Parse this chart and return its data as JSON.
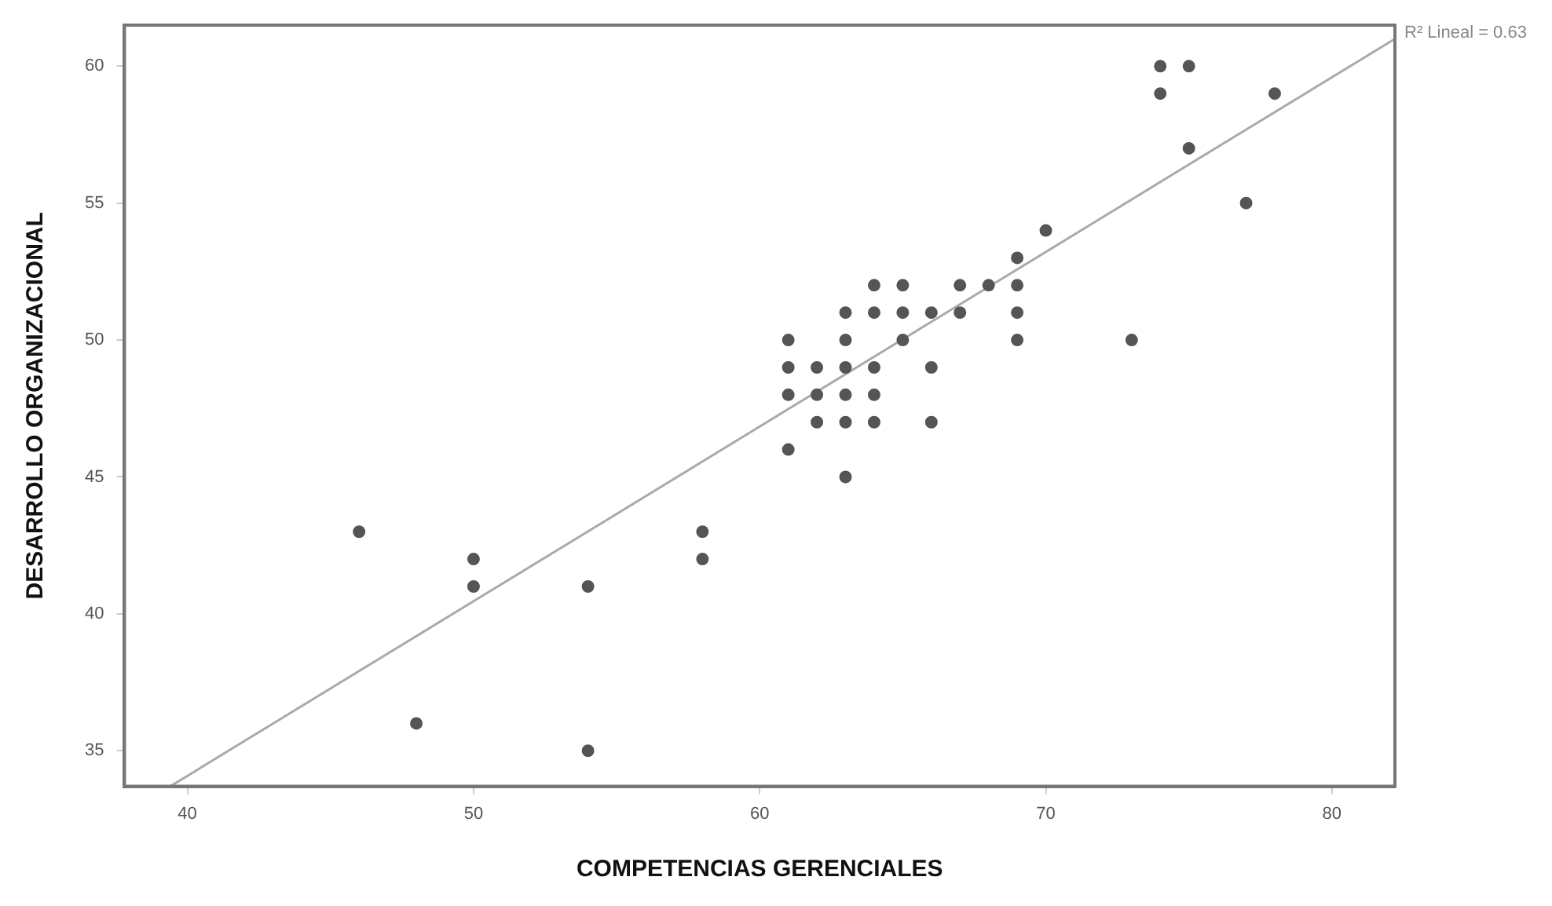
{
  "chart_data": {
    "type": "scatter",
    "xlabel": "COMPETENCIAS GERENCIALES",
    "ylabel": "DESARROLLO ORGANIZACIONAL",
    "xlim": [
      37.8,
      82.2
    ],
    "xticks": [
      40,
      50,
      60,
      70,
      80
    ],
    "ylim": [
      33.7,
      61.5
    ],
    "yticks": [
      35,
      40,
      45,
      50,
      55,
      60
    ],
    "series": [
      {
        "marker": "circle",
        "color": "#555555",
        "x": [
          74,
          75,
          74,
          78,
          75,
          77,
          70,
          69,
          64,
          65,
          67,
          68,
          69,
          63,
          64,
          65,
          66,
          67,
          69,
          61,
          63,
          65,
          69,
          73,
          61,
          62,
          63,
          64,
          66,
          61,
          62,
          63,
          64,
          62,
          63,
          64,
          66,
          61,
          63,
          46,
          50,
          50,
          54,
          48,
          54,
          58,
          58
        ],
        "values": [
          60,
          60,
          59,
          59,
          57,
          55,
          54,
          53,
          52,
          52,
          52,
          52,
          52,
          51,
          51,
          51,
          51,
          51,
          51,
          50,
          50,
          50,
          50,
          50,
          49,
          49,
          49,
          49,
          49,
          48,
          48,
          48,
          48,
          47,
          47,
          47,
          47,
          46,
          45,
          43,
          42,
          41,
          41,
          36,
          35,
          43,
          42
        ]
      },
      {
        "type": "line",
        "color": "#aaaaaa",
        "x": [
          39.4,
          82.2
        ],
        "values": [
          33.7,
          61.0
        ]
      }
    ],
    "annotations": [
      {
        "text": "R² Lineal = 0.63",
        "x": 82.2,
        "y": 61.0
      }
    ]
  }
}
